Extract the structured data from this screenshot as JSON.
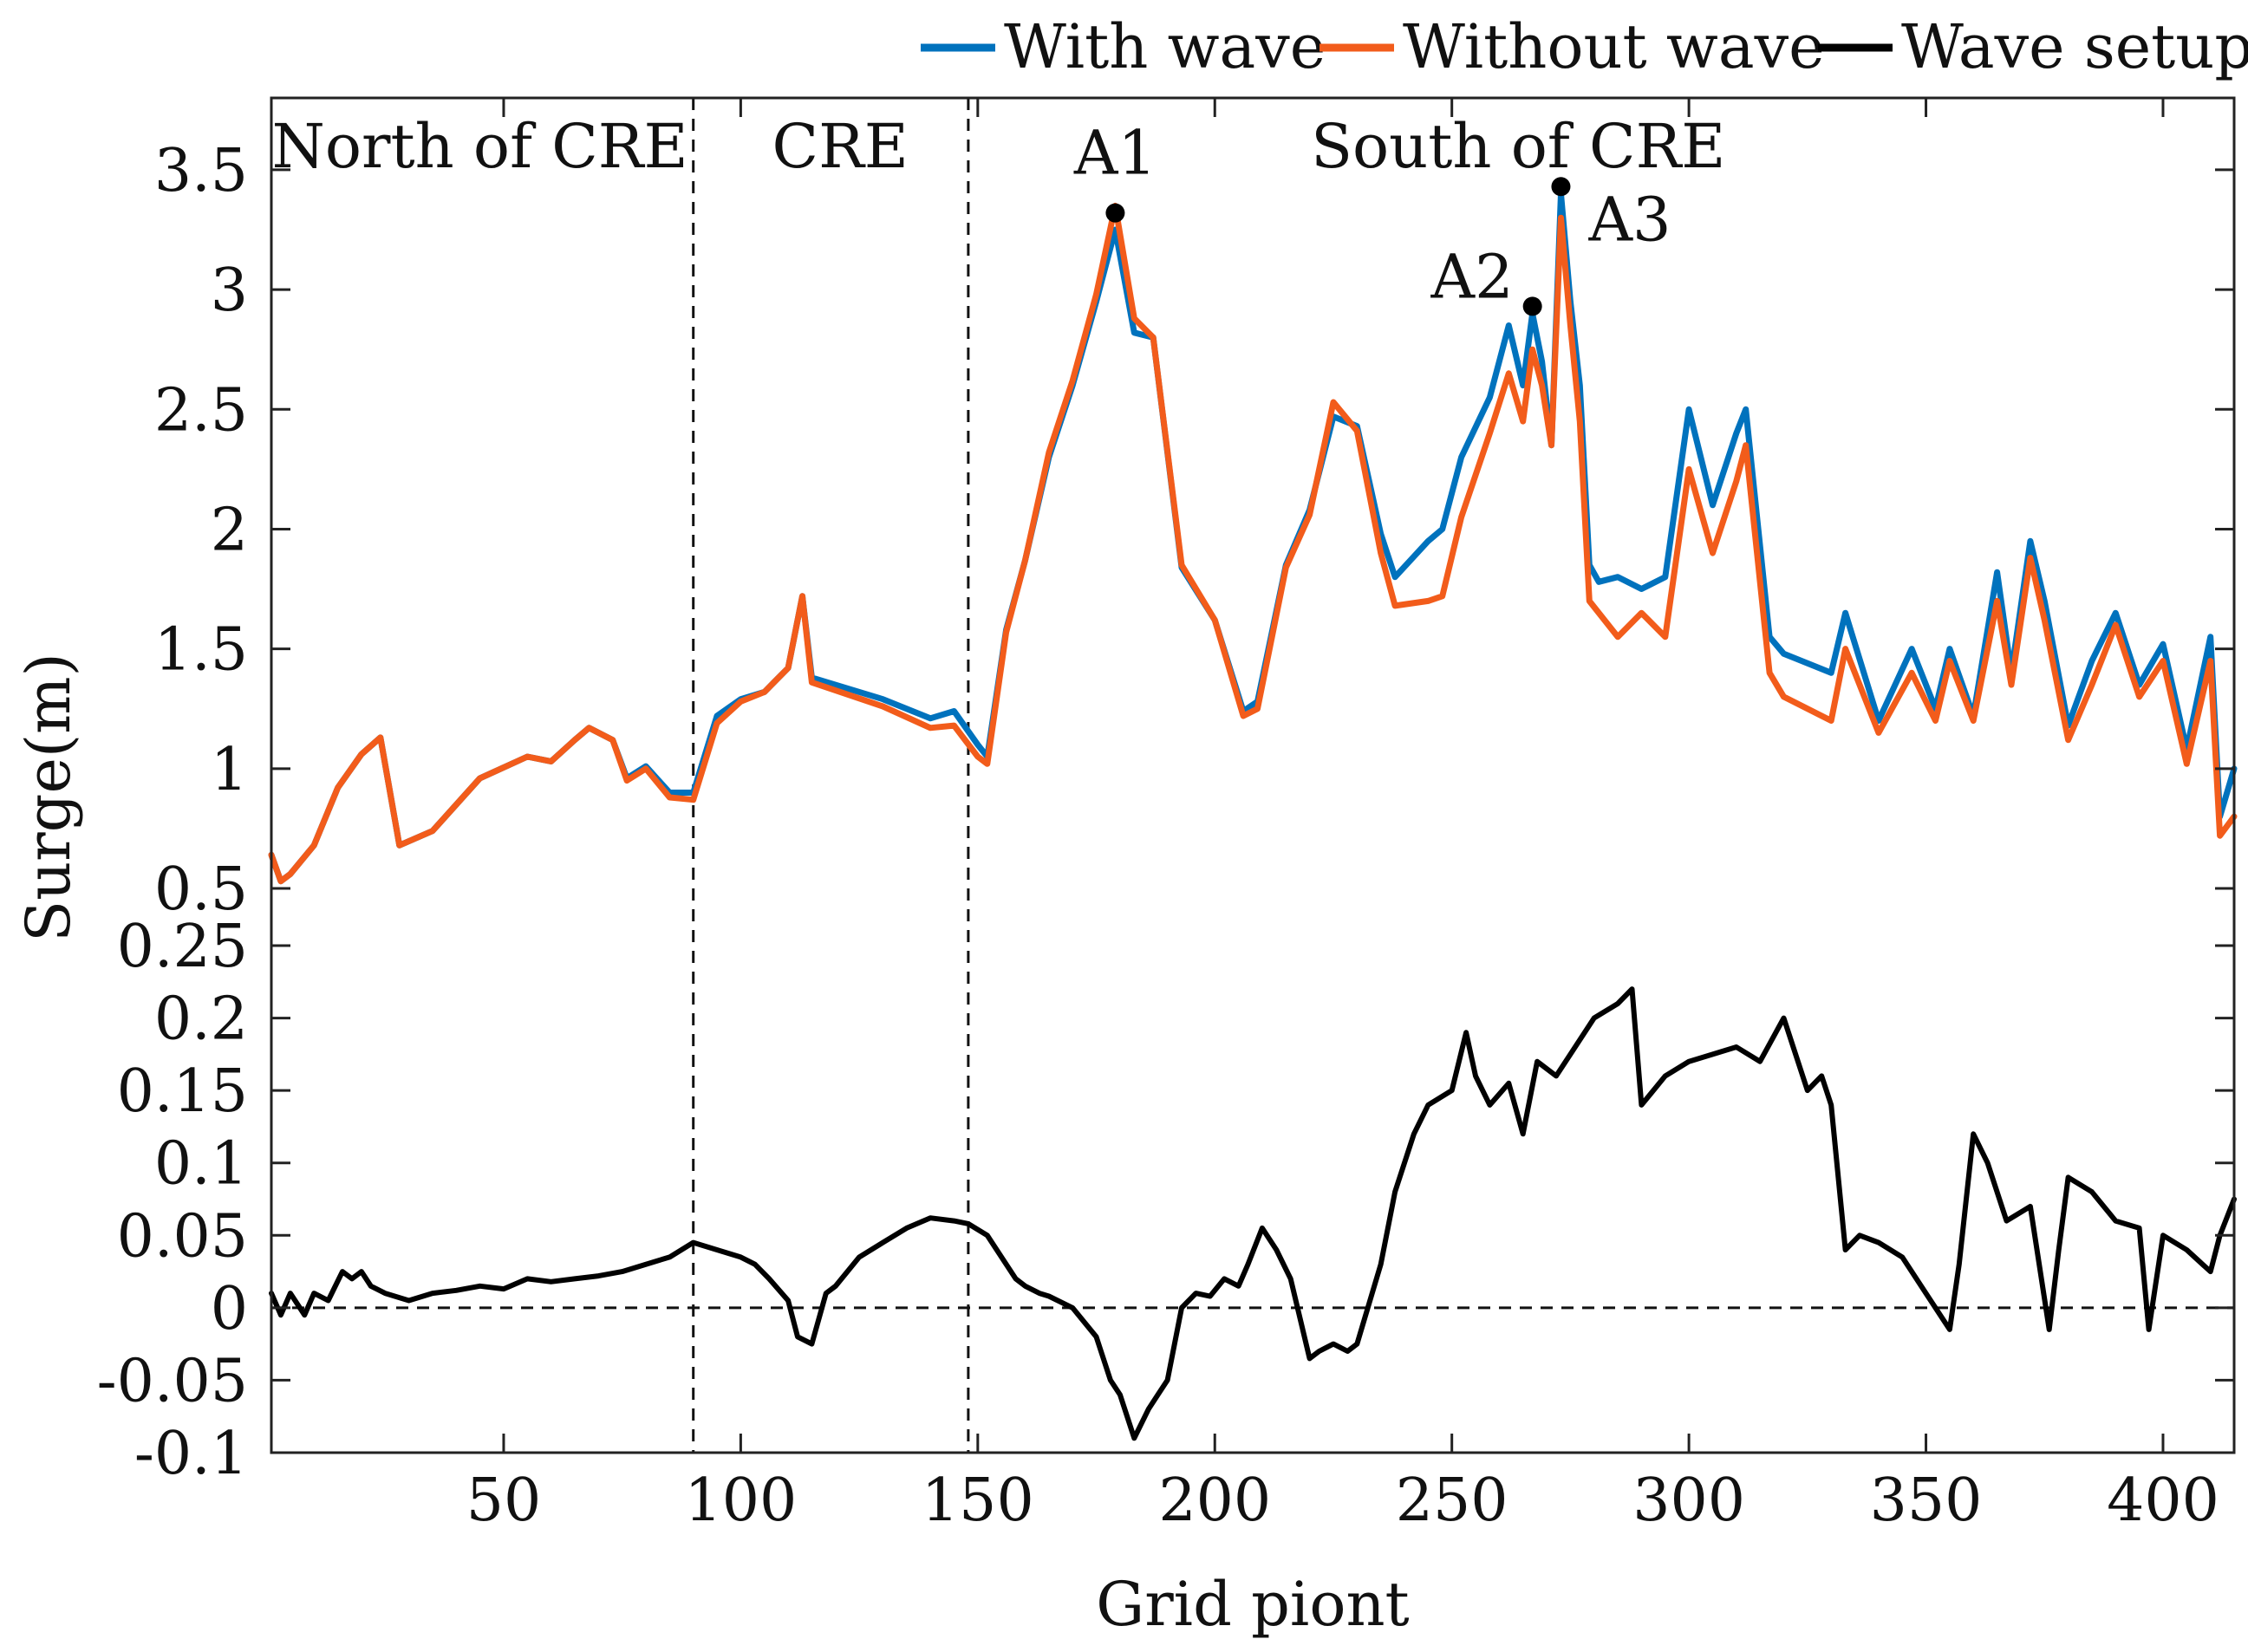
{
  "chart_data": {
    "type": "line",
    "xlabel": "Grid piont",
    "ylabel": "Surge(m)",
    "xlim": [
      1,
      415
    ],
    "xticks": [
      50,
      100,
      150,
      200,
      250,
      300,
      350,
      400
    ],
    "top_panel": {
      "ylim": [
        0.5,
        3.8
      ],
      "yticks": [
        0.5,
        1,
        1.5,
        2,
        2.5,
        3,
        3.5
      ],
      "series": [
        {
          "name": "With wave",
          "color": "#0072BD",
          "x": [
            1,
            3,
            5,
            10,
            15,
            20,
            24,
            28,
            35,
            45,
            55,
            60,
            65,
            68,
            73,
            76,
            80,
            85,
            90,
            95,
            100,
            105,
            110,
            113,
            115,
            130,
            140,
            145,
            150,
            152,
            156,
            160,
            165,
            170,
            175,
            179,
            183,
            187,
            193,
            200,
            206,
            209,
            215,
            220,
            225,
            230,
            235,
            238,
            245,
            248,
            252,
            258,
            262,
            265,
            267,
            269,
            271,
            273,
            275,
            277,
            279,
            281,
            285,
            290,
            295,
            300,
            305,
            310,
            312,
            317,
            320,
            330,
            333,
            340,
            347,
            352,
            355,
            360,
            365,
            368,
            372,
            375,
            380,
            385,
            390,
            395,
            400,
            405,
            410,
            412,
            415
          ],
          "y": [
            0.64,
            0.53,
            0.56,
            0.68,
            0.92,
            1.06,
            1.13,
            0.68,
            0.74,
            0.96,
            1.05,
            1.03,
            1.12,
            1.17,
            1.12,
            0.96,
            1.01,
            0.9,
            0.9,
            1.22,
            1.29,
            1.32,
            1.42,
            1.72,
            1.38,
            1.29,
            1.21,
            1.24,
            1.1,
            1.05,
            1.58,
            1.87,
            2.3,
            2.6,
            2.95,
            3.25,
            2.82,
            2.8,
            1.84,
            1.62,
            1.24,
            1.28,
            1.85,
            2.08,
            2.47,
            2.43,
            1.98,
            1.8,
            1.95,
            2.0,
            2.3,
            2.55,
            2.85,
            2.6,
            2.9,
            2.7,
            2.35,
            3.4,
            2.95,
            2.6,
            1.85,
            1.78,
            1.8,
            1.75,
            1.8,
            2.5,
            2.1,
            2.4,
            2.5,
            1.55,
            1.48,
            1.4,
            1.65,
            1.2,
            1.5,
            1.25,
            1.5,
            1.22,
            1.82,
            1.4,
            1.95,
            1.7,
            1.18,
            1.45,
            1.65,
            1.35,
            1.52,
            1.08,
            1.55,
            0.8,
            1.0
          ]
        },
        {
          "name": "Without wave",
          "color": "#F25C1B",
          "x": [
            1,
            3,
            5,
            10,
            15,
            20,
            24,
            28,
            35,
            45,
            55,
            60,
            65,
            68,
            73,
            76,
            80,
            85,
            90,
            95,
            100,
            105,
            110,
            113,
            115,
            130,
            140,
            145,
            150,
            152,
            156,
            160,
            165,
            170,
            175,
            179,
            183,
            187,
            193,
            200,
            206,
            209,
            215,
            220,
            225,
            230,
            235,
            238,
            245,
            248,
            252,
            258,
            262,
            265,
            267,
            269,
            271,
            273,
            275,
            277,
            279,
            281,
            285,
            290,
            295,
            300,
            305,
            310,
            312,
            317,
            320,
            330,
            333,
            340,
            347,
            352,
            355,
            360,
            365,
            368,
            372,
            375,
            380,
            385,
            390,
            395,
            400,
            405,
            410,
            412,
            415
          ],
          "y": [
            0.64,
            0.53,
            0.56,
            0.68,
            0.92,
            1.06,
            1.13,
            0.68,
            0.74,
            0.96,
            1.05,
            1.03,
            1.12,
            1.17,
            1.12,
            0.95,
            1.0,
            0.88,
            0.87,
            1.19,
            1.28,
            1.32,
            1.42,
            1.72,
            1.36,
            1.26,
            1.17,
            1.18,
            1.05,
            1.02,
            1.57,
            1.87,
            2.32,
            2.62,
            2.98,
            3.35,
            2.88,
            2.8,
            1.85,
            1.62,
            1.22,
            1.25,
            1.84,
            2.06,
            2.53,
            2.41,
            1.9,
            1.68,
            1.7,
            1.72,
            2.05,
            2.4,
            2.65,
            2.45,
            2.75,
            2.6,
            2.35,
            3.3,
            2.85,
            2.45,
            1.7,
            1.65,
            1.55,
            1.65,
            1.55,
            2.25,
            1.9,
            2.2,
            2.35,
            1.4,
            1.3,
            1.2,
            1.5,
            1.15,
            1.4,
            1.2,
            1.45,
            1.2,
            1.7,
            1.35,
            1.88,
            1.62,
            1.12,
            1.35,
            1.6,
            1.3,
            1.45,
            1.02,
            1.45,
            0.72,
            0.8
          ]
        }
      ],
      "points": [
        {
          "label": "A1",
          "x": 179,
          "y": 3.32
        },
        {
          "label": "A2",
          "x": 267,
          "y": 2.93
        },
        {
          "label": "A3",
          "x": 273,
          "y": 3.43
        }
      ],
      "region_labels": [
        {
          "text": "North of CRE",
          "x": 45
        },
        {
          "text": "CRE",
          "x": 121
        },
        {
          "text": "South of CRE",
          "x": 264
        }
      ],
      "dividers": [
        90,
        148
      ]
    },
    "bottom_panel": {
      "ylim": [
        -0.1,
        0.25
      ],
      "yticks": [
        -0.1,
        -0.05,
        0,
        0.05,
        0.1,
        0.15,
        0.2,
        0.25
      ],
      "zero_line": 0,
      "series": [
        {
          "name": "Wave setup",
          "color": "#000000",
          "x": [
            1,
            3,
            5,
            8,
            10,
            13,
            16,
            18,
            20,
            22,
            25,
            30,
            35,
            40,
            45,
            50,
            55,
            60,
            65,
            70,
            75,
            80,
            85,
            90,
            95,
            100,
            103,
            106,
            110,
            112,
            115,
            118,
            120,
            125,
            130,
            135,
            140,
            145,
            148,
            152,
            155,
            158,
            160,
            163,
            165,
            170,
            175,
            178,
            180,
            183,
            186,
            188,
            190,
            193,
            196,
            199,
            202,
            205,
            207,
            210,
            213,
            216,
            220,
            222,
            225,
            228,
            230,
            235,
            238,
            242,
            245,
            250,
            253,
            255,
            258,
            262,
            265,
            268,
            272,
            275,
            280,
            285,
            288,
            290,
            295,
            300,
            305,
            310,
            315,
            320,
            325,
            328,
            330,
            333,
            336,
            340,
            345,
            350,
            355,
            357,
            360,
            363,
            367,
            372,
            376,
            378,
            380,
            385,
            390,
            395,
            397,
            400,
            405,
            410,
            412,
            415
          ],
          "y": [
            0.01,
            -0.005,
            0.01,
            -0.005,
            0.01,
            0.005,
            0.025,
            0.02,
            0.025,
            0.015,
            0.01,
            0.005,
            0.01,
            0.012,
            0.015,
            0.013,
            0.02,
            0.018,
            0.02,
            0.022,
            0.025,
            0.03,
            0.035,
            0.045,
            0.04,
            0.035,
            0.03,
            0.02,
            0.005,
            -0.02,
            -0.025,
            0.01,
            0.015,
            0.035,
            0.045,
            0.055,
            0.062,
            0.06,
            0.058,
            0.05,
            0.035,
            0.02,
            0.015,
            0.01,
            0.008,
            0.0,
            -0.02,
            -0.05,
            -0.06,
            -0.09,
            -0.07,
            -0.06,
            -0.05,
            0.0,
            0.01,
            0.008,
            0.02,
            0.015,
            0.03,
            0.055,
            0.04,
            0.02,
            -0.035,
            -0.03,
            -0.025,
            -0.03,
            -0.025,
            0.03,
            0.08,
            0.12,
            0.14,
            0.15,
            0.19,
            0.16,
            0.14,
            0.155,
            0.12,
            0.17,
            0.16,
            0.175,
            0.2,
            0.21,
            0.22,
            0.14,
            0.16,
            0.17,
            0.175,
            0.18,
            0.17,
            0.2,
            0.15,
            0.16,
            0.14,
            0.04,
            0.05,
            0.045,
            0.035,
            0.01,
            -0.015,
            0.03,
            0.12,
            0.1,
            0.06,
            0.07,
            -0.015,
            0.04,
            0.09,
            0.08,
            0.06,
            0.055,
            -0.015,
            0.05,
            0.04,
            0.025,
            0.05,
            0.075
          ]
        }
      ]
    },
    "legend": {
      "position": "top-right",
      "entries": [
        {
          "label": "With wave",
          "color": "#0072BD"
        },
        {
          "label": "Without wave",
          "color": "#F25C1B"
        },
        {
          "label": "Wave setup",
          "color": "#000000"
        }
      ]
    }
  }
}
